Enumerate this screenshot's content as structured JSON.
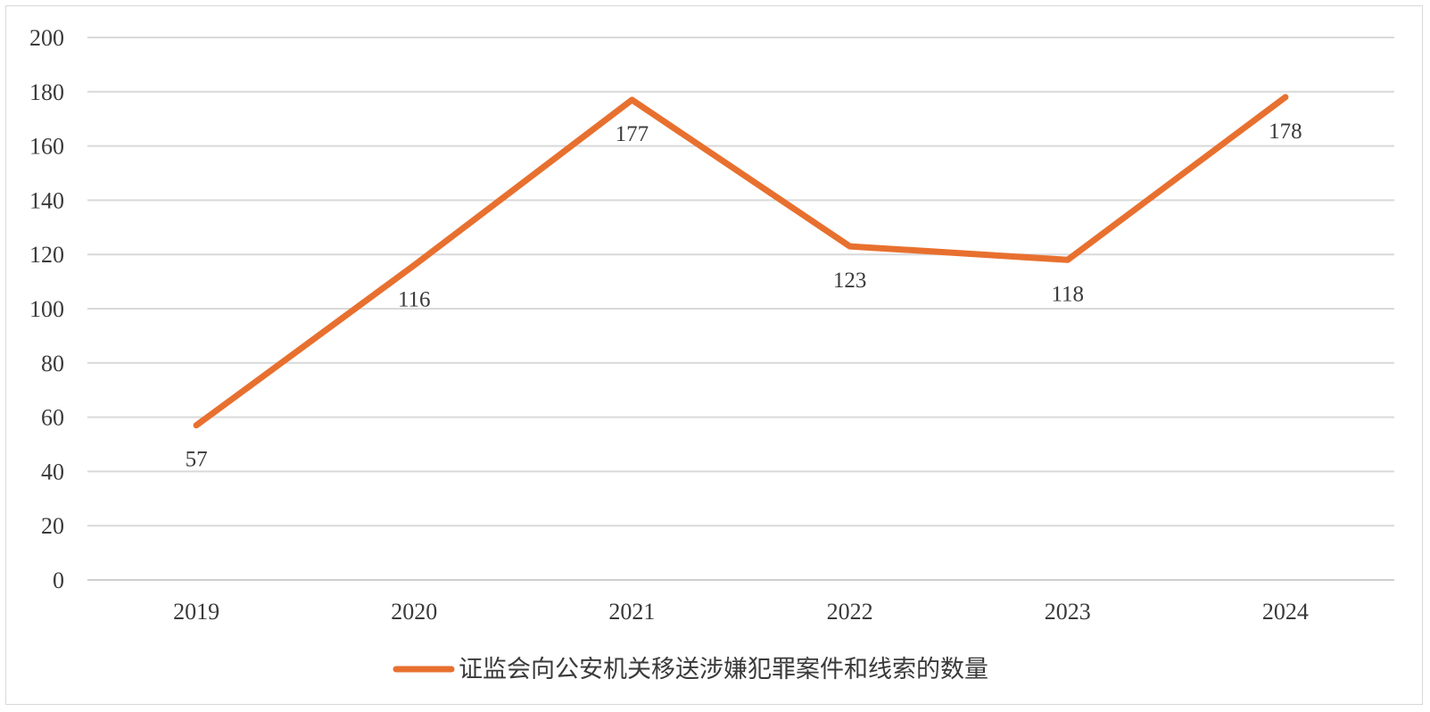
{
  "chart_data": {
    "type": "line",
    "title": "",
    "xlabel": "",
    "ylabel": "",
    "categories": [
      "2019",
      "2020",
      "2021",
      "2022",
      "2023",
      "2024"
    ],
    "ylim": [
      0,
      200
    ],
    "yticks": [
      "0",
      "20",
      "40",
      "60",
      "80",
      "100",
      "120",
      "140",
      "160",
      "180",
      "200"
    ],
    "grid": true,
    "legend_position": "bottom",
    "series": [
      {
        "name": "证监会向公安机关移送涉嫌犯罪案件和线索的数量",
        "values": [
          57,
          116,
          177,
          123,
          118,
          178
        ],
        "data_labels": [
          "57",
          "116",
          "177",
          "123",
          "118",
          "178"
        ],
        "color": "#E8702F"
      }
    ]
  }
}
